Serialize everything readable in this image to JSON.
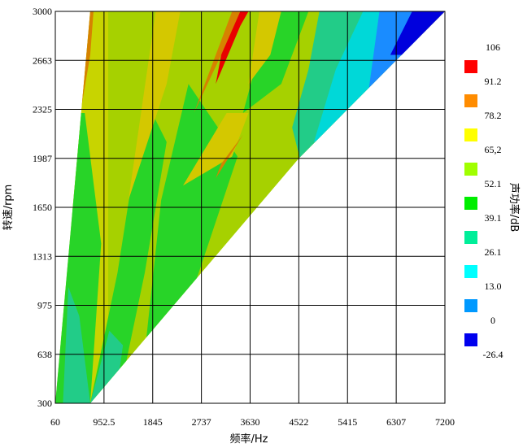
{
  "chart_data": {
    "type": "contour",
    "xlabel": "频率/Hz",
    "ylabel": "转速/rpm",
    "colorbar_label": "声功率/dB",
    "x_ticks": [
      "60",
      "952.5",
      "1845",
      "2737",
      "3630",
      "4522",
      "5415",
      "6307",
      "7200"
    ],
    "y_ticks": [
      "300",
      "638",
      "975",
      "1313",
      "1650",
      "1987",
      "2325",
      "2663",
      "3000"
    ],
    "xlim": [
      60,
      7200
    ],
    "ylim": [
      300,
      3000
    ],
    "grid": true,
    "colorbar_levels": [
      "106",
      "91.2",
      "78.2",
      "65,2",
      "52.1",
      "39.1",
      "26.1",
      "13.0",
      "0",
      "-26.4"
    ],
    "colorbar_colors": [
      "#ff0000",
      "#ff8c00",
      "#ffff00",
      "#a0ff00",
      "#00ee00",
      "#00ee99",
      "#00ffff",
      "#0099ff",
      "#0000ee"
    ],
    "background_color": "#a6d100",
    "regions": [
      {
        "band": "52.1-65.2",
        "color": "#c8d400",
        "polygon": [
          [
            300,
            300
          ],
          [
            1030,
            300
          ],
          [
            1030,
            3000
          ],
          [
            450,
            3000
          ]
        ]
      },
      {
        "band": "39.1-52.1",
        "color": "#28d428",
        "polygon": [
          [
            60,
            300
          ],
          [
            700,
            300
          ],
          [
            900,
            1400
          ],
          [
            600,
            2300
          ],
          [
            450,
            2300
          ],
          [
            220,
            1500
          ]
        ]
      },
      {
        "band": "26.1-39.1",
        "color": "#22cc88",
        "polygon": [
          [
            200,
            300
          ],
          [
            700,
            300
          ],
          [
            500,
            900
          ],
          [
            300,
            1100
          ]
        ]
      },
      {
        "band": "78.2-91.2",
        "color": "#d68200",
        "polygon": [
          [
            700,
            2700
          ],
          [
            760,
            3000
          ],
          [
            680,
            3000
          ],
          [
            520,
            2300
          ]
        ]
      },
      {
        "band": "39.1-52.1",
        "color": "#28d428",
        "polygon": [
          [
            700,
            300
          ],
          [
            1200,
            300
          ],
          [
            1700,
            1200
          ],
          [
            2100,
            2100
          ],
          [
            1700,
            2400
          ],
          [
            1200,
            1200
          ]
        ]
      },
      {
        "band": "26.1-39.1",
        "color": "#22cc88",
        "polygon": [
          [
            700,
            300
          ],
          [
            1150,
            300
          ],
          [
            1300,
            700
          ],
          [
            1050,
            800
          ]
        ]
      },
      {
        "band": "65.2-78.2",
        "color": "#d4c800",
        "polygon": [
          [
            1400,
            1700
          ],
          [
            2100,
            2500
          ],
          [
            2350,
            3000
          ],
          [
            1900,
            3000
          ]
        ]
      },
      {
        "band": "39.1-52.1",
        "color": "#28d428",
        "polygon": [
          [
            1600,
            300
          ],
          [
            2600,
            1100
          ],
          [
            3400,
            2000
          ],
          [
            2500,
            2500
          ],
          [
            2000,
            1700
          ]
        ]
      },
      {
        "band": "78.2-91.2",
        "color": "#d68200",
        "polygon": [
          [
            1100,
            300
          ],
          [
            1600,
            300
          ],
          [
            1200,
            500
          ]
        ]
      },
      {
        "band": "78.2-91.2",
        "color": "#d68200",
        "polygon": [
          [
            2600,
            2300
          ],
          [
            3100,
            2700
          ],
          [
            3550,
            3000
          ],
          [
            3300,
            3000
          ]
        ]
      },
      {
        "band": "91.2-106",
        "color": "#e80000",
        "polygon": [
          [
            3000,
            2500
          ],
          [
            3450,
            2900
          ],
          [
            3600,
            3000
          ],
          [
            3450,
            3000
          ],
          [
            3100,
            2700
          ]
        ]
      },
      {
        "band": "65.2-78.2",
        "color": "#d4c800",
        "polygon": [
          [
            2400,
            1800
          ],
          [
            3200,
            2300
          ],
          [
            3600,
            2300
          ],
          [
            3300,
            2000
          ]
        ]
      },
      {
        "band": "78.2-91.2",
        "color": "#d68200",
        "polygon": [
          [
            3000,
            1850
          ],
          [
            3500,
            2150
          ],
          [
            3100,
            1950
          ]
        ]
      },
      {
        "band": "39.1-52.1",
        "color": "#28d428",
        "polygon": [
          [
            3500,
            2300
          ],
          [
            4200,
            2500
          ],
          [
            4700,
            3000
          ],
          [
            4000,
            3000
          ]
        ]
      },
      {
        "band": "65.2-78.2",
        "color": "#d4c800",
        "polygon": [
          [
            3600,
            2500
          ],
          [
            4000,
            2700
          ],
          [
            4200,
            3000
          ],
          [
            3800,
            3000
          ]
        ]
      },
      {
        "band": "26.1-39.1",
        "color": "#22cc88",
        "polygon": [
          [
            4400,
            2200
          ],
          [
            4600,
            1900
          ],
          [
            5200,
            2200
          ],
          [
            5900,
            2700
          ],
          [
            6200,
            3000
          ],
          [
            4900,
            3000
          ],
          [
            4700,
            2600
          ]
        ]
      },
      {
        "band": "13.0-26.1",
        "color": "#00d8d8",
        "polygon": [
          [
            4800,
            2100
          ],
          [
            5400,
            2200
          ],
          [
            6000,
            2600
          ],
          [
            6500,
            3000
          ],
          [
            5700,
            3000
          ],
          [
            5200,
            2600
          ]
        ]
      },
      {
        "band": "0-13.0",
        "color": "#1a8cff",
        "polygon": [
          [
            5800,
            2450
          ],
          [
            6300,
            2500
          ],
          [
            6700,
            2800
          ],
          [
            6900,
            3000
          ],
          [
            6000,
            3000
          ]
        ]
      },
      {
        "band": "-26.4-0",
        "color": "#0000dd",
        "polygon": [
          [
            6200,
            2700
          ],
          [
            7200,
            2700
          ],
          [
            7200,
            3000
          ],
          [
            6600,
            3000
          ]
        ]
      }
    ]
  }
}
